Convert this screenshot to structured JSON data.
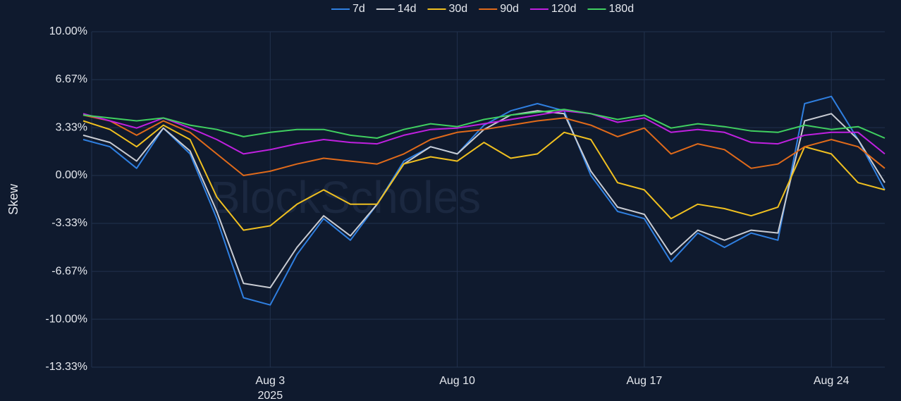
{
  "chart_data": {
    "type": "line",
    "y_label": "Skew",
    "watermark": "BlockScholes",
    "x": [
      "2025-07-27",
      "2025-07-28",
      "2025-07-29",
      "2025-07-30",
      "2025-07-31",
      "2025-08-01",
      "2025-08-02",
      "2025-08-03",
      "2025-08-04",
      "2025-08-05",
      "2025-08-06",
      "2025-08-07",
      "2025-08-08",
      "2025-08-09",
      "2025-08-10",
      "2025-08-11",
      "2025-08-12",
      "2025-08-13",
      "2025-08-14",
      "2025-08-15",
      "2025-08-16",
      "2025-08-17",
      "2025-08-18",
      "2025-08-19",
      "2025-08-20",
      "2025-08-21",
      "2025-08-22",
      "2025-08-23",
      "2025-08-24",
      "2025-08-25",
      "2025-08-26"
    ],
    "xlim": [
      "2025-07-27",
      "2025-08-26"
    ],
    "xticks": [
      {
        "value": "2025-08-03",
        "label": "Aug 3"
      },
      {
        "value": "2025-08-10",
        "label": "Aug 10"
      },
      {
        "value": "2025-08-17",
        "label": "Aug 17"
      },
      {
        "value": "2025-08-24",
        "label": "Aug 24"
      }
    ],
    "x_year_label": "2025",
    "ylim": [
      -13.33,
      10
    ],
    "yticks": [
      {
        "value": 10,
        "label": "10.00%"
      },
      {
        "value": 6.67,
        "label": "6.67%"
      },
      {
        "value": 3.33,
        "label": "3.33%"
      },
      {
        "value": 0,
        "label": "0.00%"
      },
      {
        "value": -3.33,
        "label": "-3.33%"
      },
      {
        "value": -6.67,
        "label": "-6.67%"
      },
      {
        "value": -10,
        "label": "-10.00%"
      },
      {
        "value": -13.33,
        "label": "-13.33%"
      }
    ],
    "grid": true,
    "legend": "top",
    "series": [
      {
        "name": "7d",
        "color": "#2f7fe0",
        "values": [
          2.5,
          2.0,
          0.5,
          3.3,
          1.5,
          -3.0,
          -8.5,
          -9.0,
          -5.5,
          -3.0,
          -4.5,
          -2.0,
          1.0,
          2.0,
          1.5,
          3.5,
          4.5,
          5.0,
          4.5,
          0.0,
          -2.5,
          -3.0,
          -6.0,
          -4.0,
          -5.0,
          -4.0,
          -4.5,
          5.0,
          5.5,
          2.5,
          -1.0
        ]
      },
      {
        "name": "14d",
        "color": "#c9ccd3",
        "values": [
          2.8,
          2.3,
          1.0,
          3.3,
          1.7,
          -2.5,
          -7.5,
          -7.8,
          -5.0,
          -2.8,
          -4.2,
          -2.0,
          0.8,
          2.0,
          1.5,
          3.2,
          4.2,
          4.5,
          4.3,
          0.3,
          -2.2,
          -2.7,
          -5.5,
          -3.8,
          -4.5,
          -3.8,
          -4.0,
          3.8,
          4.3,
          2.5,
          -0.5
        ]
      },
      {
        "name": "30d",
        "color": "#f0c020",
        "values": [
          3.8,
          3.2,
          2.0,
          3.5,
          2.5,
          -1.5,
          -3.8,
          -3.5,
          -2.0,
          -1.0,
          -2.0,
          -2.0,
          0.8,
          1.3,
          1.0,
          2.3,
          1.2,
          1.5,
          3.0,
          2.5,
          -0.5,
          -1.0,
          -3.0,
          -2.0,
          -2.3,
          -2.8,
          -2.2,
          2.0,
          1.5,
          -0.5,
          -1.0
        ]
      },
      {
        "name": "90d",
        "color": "#e06a1a",
        "values": [
          4.2,
          3.8,
          2.8,
          3.8,
          3.0,
          1.5,
          0.0,
          0.3,
          0.8,
          1.2,
          1.0,
          0.8,
          1.5,
          2.5,
          3.0,
          3.2,
          3.5,
          3.8,
          4.0,
          3.5,
          2.7,
          3.3,
          1.5,
          2.2,
          1.8,
          0.5,
          0.8,
          2.0,
          2.5,
          2.0,
          0.5
        ]
      },
      {
        "name": "120d",
        "color": "#c020e0",
        "values": [
          4.3,
          3.8,
          3.3,
          4.0,
          3.3,
          2.5,
          1.5,
          1.8,
          2.2,
          2.5,
          2.3,
          2.2,
          2.8,
          3.2,
          3.3,
          3.6,
          3.9,
          4.2,
          4.5,
          4.3,
          3.7,
          4.0,
          3.0,
          3.2,
          3.0,
          2.3,
          2.2,
          2.8,
          3.0,
          3.0,
          1.5
        ]
      },
      {
        "name": "180d",
        "color": "#40d060",
        "values": [
          4.2,
          4.0,
          3.8,
          4.0,
          3.5,
          3.2,
          2.7,
          3.0,
          3.2,
          3.2,
          2.8,
          2.6,
          3.2,
          3.6,
          3.4,
          3.9,
          4.2,
          4.4,
          4.6,
          4.3,
          3.9,
          4.2,
          3.3,
          3.6,
          3.4,
          3.1,
          3.0,
          3.5,
          3.2,
          3.4,
          2.6
        ]
      }
    ]
  }
}
